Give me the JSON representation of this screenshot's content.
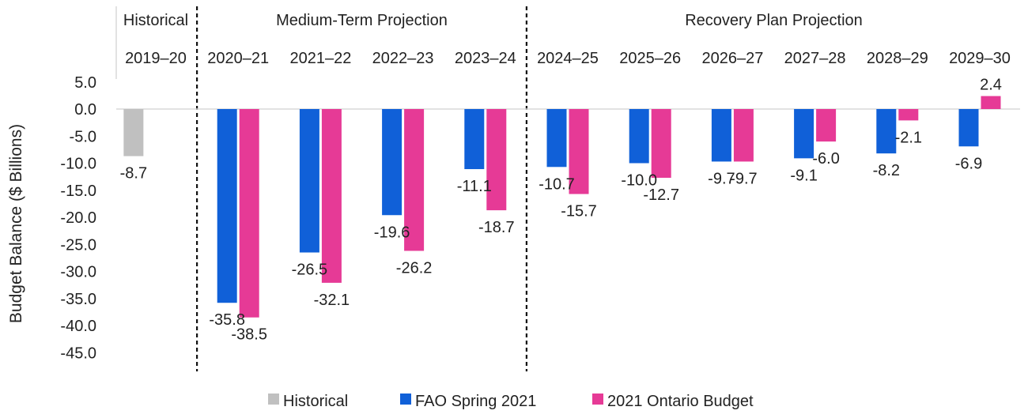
{
  "chart_data": {
    "type": "bar",
    "ylabel": "Budget Balance ($ Billions)",
    "ylim": [
      -45,
      5
    ],
    "yticks": [
      "5.0",
      "0.0",
      "-5.0",
      "-10.0",
      "-15.0",
      "-20.0",
      "-25.0",
      "-30.0",
      "-35.0",
      "-40.0",
      "-45.0"
    ],
    "ytick_values": [
      5,
      0,
      -5,
      -10,
      -15,
      -20,
      -25,
      -30,
      -35,
      -40,
      -45
    ],
    "categories": [
      "2019–20",
      "2020–21",
      "2021–22",
      "2022–23",
      "2023–24",
      "2024–25",
      "2025–26",
      "2026–27",
      "2027–28",
      "2028–29",
      "2029–30"
    ],
    "periods": [
      {
        "label": "Historical",
        "start": 0,
        "end": 0
      },
      {
        "label": "Medium-Term Projection",
        "start": 1,
        "end": 4
      },
      {
        "label": "Recovery Plan Projection",
        "start": 5,
        "end": 10
      }
    ],
    "series": [
      {
        "name": "Historical",
        "color": "#c0c0c0",
        "values": [
          -8.7,
          null,
          null,
          null,
          null,
          null,
          null,
          null,
          null,
          null,
          null
        ],
        "labels": [
          "-8.7",
          null,
          null,
          null,
          null,
          null,
          null,
          null,
          null,
          null,
          null
        ]
      },
      {
        "name": "FAO Spring 2021",
        "color": "#1060d8",
        "values": [
          null,
          -35.8,
          -26.5,
          -19.6,
          -11.1,
          -10.7,
          -10.0,
          -9.7,
          -9.1,
          -8.2,
          -6.9
        ],
        "labels": [
          null,
          "-35.8",
          "-26.5",
          "-19.6",
          "-11.1",
          "-10.7",
          "-10.0",
          "-9.7",
          "-9.1",
          "-8.2",
          "-6.9"
        ]
      },
      {
        "name": "2021 Ontario Budget",
        "color": "#e63a96",
        "values": [
          null,
          -38.5,
          -32.1,
          -26.2,
          -18.7,
          -15.7,
          -12.7,
          -9.7,
          -6.0,
          -2.1,
          2.4
        ],
        "labels": [
          null,
          "-38.5",
          "-32.1",
          "-26.2",
          "-18.7",
          "-15.7",
          "-12.7",
          "-9.7",
          "-6.0",
          "-2.1",
          "2.4"
        ]
      }
    ],
    "legend": [
      "Historical",
      "FAO Spring 2021",
      "2021 Ontario Budget"
    ],
    "legend_position": "bottom",
    "grid": false
  }
}
